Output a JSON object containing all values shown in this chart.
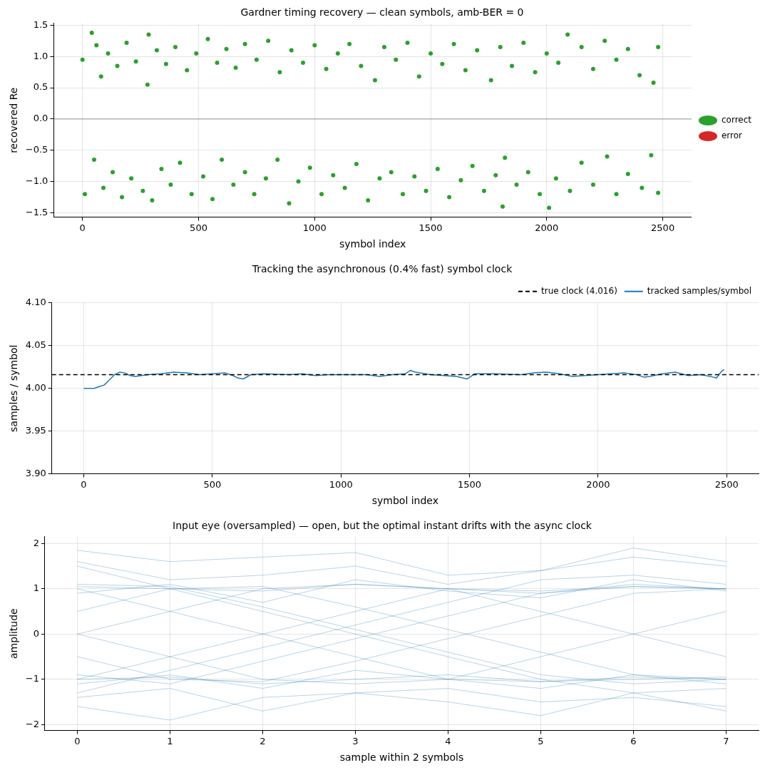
{
  "chart_data": [
    {
      "type": "scatter",
      "title": "Gardner timing recovery — clean symbols, amb-BER = 0",
      "xlabel": "symbol index",
      "ylabel": "recovered Re",
      "xlim": [
        -124,
        2624
      ],
      "ylim": [
        -1.57,
        1.53
      ],
      "xticks": [
        0,
        500,
        1000,
        1500,
        2000,
        2500
      ],
      "yticks": [
        {
          "value": -1.5,
          "label": "−1.5"
        },
        {
          "value": -1,
          "label": "−1.0"
        },
        {
          "value": -0.5,
          "label": "−0.5"
        },
        {
          "value": 0,
          "label": "0.0"
        },
        {
          "value": 0.5,
          "label": "0.5"
        },
        {
          "value": 1,
          "label": "1.0"
        },
        {
          "value": 1.5,
          "label": "1.5"
        }
      ],
      "grid": true,
      "legend": "right",
      "marker": "circle",
      "ref_lines": [
        {
          "axis": "y",
          "value": 0,
          "color": "#808080"
        }
      ],
      "series": [
        {
          "name": "correct",
          "color": "#2ca02c",
          "x": [
            0,
            40,
            60,
            80,
            110,
            150,
            190,
            230,
            280,
            285,
            320,
            360,
            400,
            450,
            490,
            540,
            580,
            620,
            660,
            700,
            750,
            800,
            850,
            900,
            950,
            1000,
            1050,
            1100,
            1150,
            1200,
            1260,
            1300,
            1350,
            1400,
            1450,
            1500,
            1550,
            1600,
            1650,
            1700,
            1760,
            1800,
            1850,
            1900,
            1950,
            2000,
            2050,
            2090,
            2150,
            2200,
            2250,
            2300,
            2350,
            2400,
            2460,
            2480,
            10,
            50,
            90,
            130,
            170,
            210,
            260,
            300,
            340,
            380,
            420,
            470,
            520,
            560,
            600,
            650,
            700,
            740,
            790,
            840,
            890,
            930,
            980,
            1030,
            1080,
            1130,
            1180,
            1230,
            1280,
            1330,
            1380,
            1430,
            1480,
            1530,
            1580,
            1630,
            1680,
            1730,
            1780,
            1810,
            1820,
            1870,
            1920,
            1970,
            2010,
            2040,
            2100,
            2150,
            2200,
            2260,
            2300,
            2350,
            2410,
            2450,
            2480
          ],
          "values": [
            0.95,
            1.38,
            1.18,
            0.68,
            1.05,
            0.85,
            1.22,
            0.92,
            0.55,
            1.35,
            1.1,
            0.88,
            1.15,
            0.78,
            1.05,
            1.28,
            0.9,
            1.12,
            0.82,
            1.2,
            0.95,
            1.25,
            0.75,
            1.1,
            0.9,
            1.18,
            0.8,
            1.05,
            1.2,
            0.85,
            0.62,
            1.15,
            0.95,
            1.22,
            0.68,
            1.05,
            0.88,
            1.2,
            0.78,
            1.1,
            0.62,
            1.15,
            0.85,
            1.22,
            0.75,
            1.05,
            0.9,
            1.35,
            1.15,
            0.8,
            1.25,
            0.95,
            1.12,
            0.7,
            0.58,
            1.15,
            -1.2,
            -0.65,
            -1.1,
            -0.85,
            -1.25,
            -0.95,
            -1.15,
            -1.3,
            -0.8,
            -1.05,
            -0.7,
            -1.2,
            -0.92,
            -1.28,
            -0.65,
            -1.05,
            -0.85,
            -1.2,
            -0.95,
            -0.65,
            -1.35,
            -1.0,
            -0.78,
            -1.2,
            -0.9,
            -1.1,
            -0.72,
            -1.3,
            -0.95,
            -0.85,
            -1.2,
            -0.92,
            -1.15,
            -0.8,
            -1.25,
            -0.98,
            -0.75,
            -1.15,
            -0.9,
            -1.4,
            -0.62,
            -1.05,
            -0.85,
            -1.2,
            -1.42,
            -0.95,
            -1.15,
            -0.7,
            -1.05,
            -0.6,
            -1.2,
            -0.88,
            -1.1,
            -0.58,
            -1.18
          ]
        },
        {
          "name": "error",
          "color": "#d62728"
        }
      ]
    },
    {
      "type": "line",
      "title": "Tracking the asynchronous (0.4% fast) symbol clock",
      "xlabel": "symbol index",
      "ylabel": "samples / symbol",
      "xlim": [
        -124,
        2624
      ],
      "ylim": [
        3.9,
        4.1
      ],
      "xticks": [
        0,
        500,
        1000,
        1500,
        2000,
        2500
      ],
      "yticks": [
        {
          "value": 3.9,
          "label": "3.90"
        },
        {
          "value": 3.95,
          "label": "3.95"
        },
        {
          "value": 4,
          "label": "4.00"
        },
        {
          "value": 4.05,
          "label": "4.05"
        },
        {
          "value": 4.1,
          "label": "4.10"
        }
      ],
      "grid": true,
      "legend": "top right",
      "marker": "none",
      "ref_lines": [
        {
          "axis": "y",
          "value": 4.016,
          "label": "true clock (4.016)",
          "color": "#000000",
          "line_style": "dashed"
        }
      ],
      "series": [
        {
          "name": "tracked samples/symbol",
          "color": "#1f77b4",
          "x": [
            0,
            20,
            40,
            60,
            80,
            100,
            120,
            140,
            160,
            180,
            200,
            250,
            300,
            350,
            400,
            450,
            500,
            550,
            580,
            600,
            620,
            650,
            700,
            800,
            850,
            900,
            950,
            1000,
            1100,
            1150,
            1200,
            1250,
            1270,
            1290,
            1350,
            1400,
            1450,
            1490,
            1520,
            1600,
            1700,
            1750,
            1800,
            1850,
            1900,
            1950,
            2000,
            2050,
            2100,
            2150,
            2180,
            2200,
            2250,
            2300,
            2350,
            2400,
            2450,
            2460,
            2480,
            2490
          ],
          "values": [
            4.0,
            4.0,
            4.0,
            4.002,
            4.004,
            4.01,
            4.016,
            4.019,
            4.018,
            4.015,
            4.014,
            4.016,
            4.017,
            4.019,
            4.018,
            4.016,
            4.017,
            4.018,
            4.015,
            4.012,
            4.011,
            4.016,
            4.017,
            4.016,
            4.017,
            4.015,
            4.016,
            4.016,
            4.016,
            4.014,
            4.016,
            4.017,
            4.021,
            4.019,
            4.016,
            4.015,
            4.014,
            4.011,
            4.017,
            4.017,
            4.016,
            4.018,
            4.019,
            4.017,
            4.014,
            4.015,
            4.016,
            4.017,
            4.018,
            4.016,
            4.013,
            4.014,
            4.017,
            4.019,
            4.015,
            4.016,
            4.013,
            4.012,
            4.02,
            4.022
          ]
        }
      ]
    },
    {
      "type": "line",
      "title": "Input eye (oversampled) — open, but the optimal instant drifts with the async clock",
      "xlabel": "sample within 2 symbols",
      "ylabel": "amplitude",
      "x": [
        0,
        1,
        2,
        3,
        4,
        5,
        6,
        7
      ],
      "xlim": [
        -0.35,
        7.35
      ],
      "ylim": [
        -2.13,
        2.15
      ],
      "xticks": [
        0,
        1,
        2,
        3,
        4,
        5,
        6,
        7
      ],
      "yticks": [
        {
          "value": -2,
          "label": "−2"
        },
        {
          "value": -1,
          "label": "−1"
        },
        0,
        1,
        2
      ],
      "grid": true,
      "marker": "none",
      "series": [
        {
          "color": "#1f77b4",
          "values": [
            1.05,
            1.0,
            0.95,
            1.1,
            1.0,
            0.9,
            1.05,
            1.0
          ]
        },
        {
          "color": "#1f77b4",
          "values": [
            -1.0,
            -0.95,
            -1.1,
            -1.0,
            -0.9,
            -1.05,
            -1.0,
            -0.95
          ]
        },
        {
          "color": "#1f77b4",
          "values": [
            1.0,
            0.5,
            0.0,
            -0.5,
            -1.0,
            -1.05,
            -0.95,
            -1.0
          ]
        },
        {
          "color": "#1f77b4",
          "values": [
            -1.0,
            -0.5,
            0.0,
            0.5,
            1.0,
            0.95,
            1.05,
            1.0
          ]
        },
        {
          "color": "#1f77b4",
          "values": [
            1.1,
            1.05,
            0.6,
            0.1,
            -0.4,
            -0.9,
            -1.1,
            -1.0
          ]
        },
        {
          "color": "#1f77b4",
          "values": [
            -0.9,
            -1.1,
            -0.6,
            -0.1,
            0.4,
            0.9,
            1.1,
            1.0
          ]
        },
        {
          "color": "#1f77b4",
          "values": [
            0.0,
            0.5,
            1.0,
            1.1,
            1.0,
            0.5,
            0.0,
            -0.5
          ]
        },
        {
          "color": "#1f77b4",
          "values": [
            0.0,
            -0.5,
            -1.0,
            -1.1,
            -1.0,
            -0.5,
            0.0,
            0.5
          ]
        },
        {
          "color": "#1f77b4",
          "values": [
            1.6,
            1.2,
            1.3,
            1.5,
            1.1,
            1.4,
            1.7,
            1.5
          ]
        },
        {
          "color": "#1f77b4",
          "values": [
            -1.6,
            -1.9,
            -1.4,
            -1.3,
            -1.2,
            -1.5,
            -1.4,
            -1.6
          ]
        },
        {
          "color": "#1f77b4",
          "values": [
            1.85,
            1.6,
            1.7,
            1.8,
            1.3,
            1.4,
            1.9,
            1.6
          ]
        },
        {
          "color": "#1f77b4",
          "values": [
            -1.4,
            -1.2,
            -1.7,
            -1.3,
            -1.5,
            -1.8,
            -1.3,
            -1.7
          ]
        },
        {
          "color": "#1f77b4",
          "values": [
            0.5,
            1.0,
            1.05,
            0.6,
            0.1,
            -0.4,
            -0.9,
            -1.0
          ]
        },
        {
          "color": "#1f77b4",
          "values": [
            -0.5,
            -1.0,
            -1.05,
            -0.6,
            -0.1,
            0.4,
            0.9,
            1.0
          ]
        },
        {
          "color": "#1f77b4",
          "values": [
            1.5,
            1.0,
            0.5,
            0.0,
            -0.5,
            -1.0,
            -1.3,
            -1.2
          ]
        },
        {
          "color": "#1f77b4",
          "values": [
            -1.3,
            -0.8,
            -0.3,
            0.2,
            0.7,
            1.2,
            1.3,
            1.1
          ]
        },
        {
          "color": "#1f77b4",
          "values": [
            0.9,
            1.1,
            0.7,
            1.2,
            0.95,
            0.8,
            1.2,
            0.95
          ]
        },
        {
          "color": "#1f77b4",
          "values": [
            -1.1,
            -0.9,
            -1.2,
            -0.8,
            -1.0,
            -1.2,
            -0.9,
            -1.1
          ]
        }
      ]
    }
  ]
}
